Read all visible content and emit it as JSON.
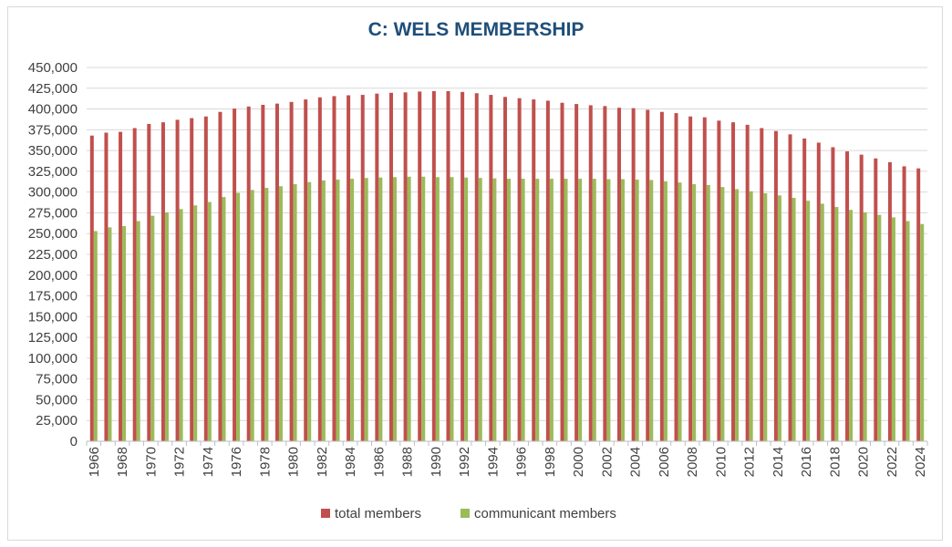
{
  "chart_data": {
    "type": "bar",
    "title": "C: WELS MEMBERSHIP",
    "xlabel": "",
    "ylabel": "",
    "ylim": [
      0,
      450000
    ],
    "ytick_step": 25000,
    "ytick_labels": [
      "0",
      "25,000",
      "50,000",
      "75,000",
      "100,000",
      "125,000",
      "150,000",
      "175,000",
      "200,000",
      "225,000",
      "250,000",
      "275,000",
      "300,000",
      "325,000",
      "350,000",
      "375,000",
      "400,000",
      "425,000",
      "450,000"
    ],
    "grid": true,
    "legend_position": "bottom",
    "categories": [
      1966,
      1967,
      1968,
      1969,
      1970,
      1971,
      1972,
      1973,
      1974,
      1975,
      1976,
      1977,
      1978,
      1979,
      1980,
      1981,
      1982,
      1983,
      1984,
      1985,
      1986,
      1987,
      1988,
      1989,
      1990,
      1991,
      1992,
      1993,
      1994,
      1995,
      1996,
      1997,
      1998,
      1999,
      2000,
      2001,
      2002,
      2003,
      2004,
      2005,
      2006,
      2007,
      2008,
      2009,
      2010,
      2011,
      2012,
      2013,
      2014,
      2015,
      2016,
      2017,
      2018,
      2019,
      2020,
      2021,
      2022,
      2023,
      2024
    ],
    "xtick_labels": [
      "1966",
      "1968",
      "1970",
      "1972",
      "1974",
      "1976",
      "1978",
      "1980",
      "1982",
      "1984",
      "1986",
      "1988",
      "1990",
      "1992",
      "1994",
      "1996",
      "1998",
      "2000",
      "2002",
      "2004",
      "2006",
      "2008",
      "2010",
      "2012",
      "2014",
      "2016",
      "2018",
      "2020",
      "2022",
      "2024"
    ],
    "series": [
      {
        "name": "total members",
        "color": "#c0504d",
        "values": [
          368000,
          371500,
          372500,
          377000,
          382000,
          384000,
          387000,
          389000,
          391000,
          396500,
          400500,
          403000,
          405000,
          406500,
          408500,
          411500,
          414000,
          415500,
          416500,
          417000,
          418500,
          419500,
          420000,
          421000,
          421500,
          421500,
          420500,
          419000,
          417000,
          414500,
          413000,
          411500,
          410000,
          407500,
          406000,
          404500,
          403500,
          401500,
          401000,
          399000,
          396500,
          395000,
          391000,
          390000,
          386000,
          384000,
          381000,
          377000,
          373500,
          369500,
          364500,
          359500,
          354000,
          349000,
          345000,
          340500,
          336000,
          331000,
          328500
        ]
      },
      {
        "name": "communicant members",
        "color": "#9bbb59",
        "values": [
          253000,
          257500,
          259000,
          265000,
          271500,
          275500,
          279500,
          284000,
          288000,
          294000,
          299000,
          302500,
          305000,
          307000,
          309500,
          312000,
          314000,
          315000,
          316000,
          317000,
          317500,
          318000,
          318500,
          318500,
          318000,
          318000,
          317500,
          317000,
          316500,
          316000,
          316000,
          316000,
          316000,
          316000,
          316000,
          316000,
          315500,
          315500,
          315000,
          314500,
          313000,
          311500,
          309500,
          308500,
          306000,
          303500,
          301000,
          298500,
          296000,
          293000,
          289500,
          286000,
          282000,
          278500,
          275500,
          272500,
          269500,
          265000,
          261500
        ]
      }
    ]
  }
}
